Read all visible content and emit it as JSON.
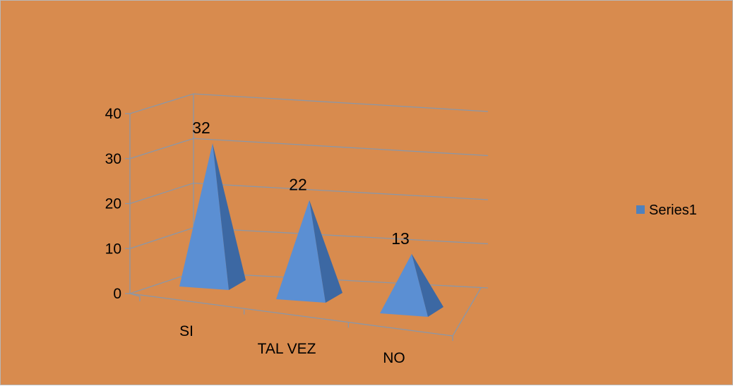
{
  "chart_data": {
    "type": "bar",
    "style": "3d-pyramid",
    "categories": [
      "SI",
      "TAL VEZ",
      "NO"
    ],
    "series": [
      {
        "name": "Series1",
        "values": [
          32,
          22,
          13
        ]
      }
    ],
    "data_labels": [
      "32",
      "22",
      "13"
    ],
    "y_ticks": [
      "0",
      "10",
      "20",
      "30",
      "40"
    ],
    "ylim": [
      0,
      40
    ],
    "grid": true,
    "legend_position": "right",
    "colors": {
      "background": "#D88B4E",
      "series_front": "#5B8FD3",
      "series_side": "#3C68A3",
      "grid": "#8A97A8",
      "legend_swatch": "#4F81BD"
    }
  }
}
